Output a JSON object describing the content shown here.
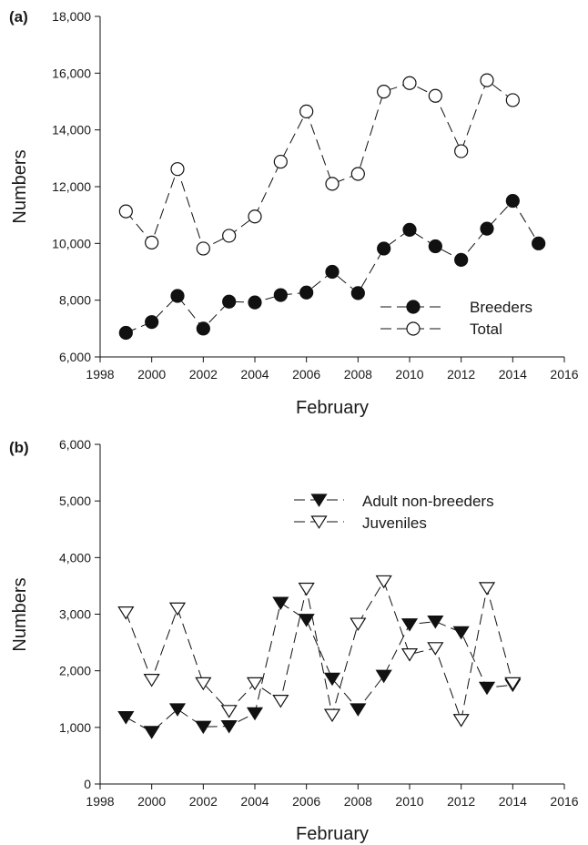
{
  "chart_data": [
    {
      "type": "line",
      "panel_label": "(a)",
      "xlabel": "February",
      "ylabel": "Numbers",
      "xlim": [
        1998,
        2016
      ],
      "ylim": [
        6000,
        18000
      ],
      "x_ticks": [
        1998,
        2000,
        2002,
        2004,
        2006,
        2008,
        2010,
        2012,
        2014,
        2016
      ],
      "x_tick_labels": [
        "1998",
        "2000",
        "2002",
        "2004",
        "2006",
        "2008",
        "2010",
        "2012",
        "2014",
        "2016"
      ],
      "y_ticks": [
        6000,
        8000,
        10000,
        12000,
        14000,
        16000,
        18000
      ],
      "y_tick_labels": [
        "6,000",
        "8,000",
        "10,000",
        "12,000",
        "14,000",
        "16,000",
        "18,000"
      ],
      "legend_position": "lower-right",
      "grid": false,
      "series": [
        {
          "name": "Breeders",
          "marker": "filled-circle",
          "x": [
            1999,
            2000,
            2001,
            2002,
            2003,
            2004,
            2005,
            2006,
            2007,
            2008,
            2009,
            2010,
            2011,
            2012,
            2013,
            2014,
            2015
          ],
          "values": [
            6850,
            7230,
            8150,
            7000,
            7950,
            7920,
            8180,
            8270,
            9000,
            8250,
            9820,
            10480,
            9900,
            9420,
            10520,
            11500,
            10000
          ]
        },
        {
          "name": "Total",
          "marker": "open-circle",
          "x": [
            1999,
            2000,
            2001,
            2002,
            2003,
            2004,
            2005,
            2006,
            2007,
            2008,
            2009,
            2010,
            2011,
            2012,
            2013,
            2014
          ],
          "values": [
            11130,
            10030,
            12620,
            9820,
            10270,
            10950,
            12880,
            14650,
            12100,
            12450,
            15350,
            15650,
            15200,
            13250,
            15750,
            15050
          ]
        }
      ]
    },
    {
      "type": "line",
      "panel_label": "(b)",
      "xlabel": "February",
      "ylabel": "Numbers",
      "xlim": [
        1998,
        2016
      ],
      "ylim": [
        0,
        6000
      ],
      "x_ticks": [
        1998,
        2000,
        2002,
        2004,
        2006,
        2008,
        2010,
        2012,
        2014,
        2016
      ],
      "x_tick_labels": [
        "1998",
        "2000",
        "2002",
        "2004",
        "2006",
        "2008",
        "2010",
        "2012",
        "2014",
        "2016"
      ],
      "y_ticks": [
        0,
        1000,
        2000,
        3000,
        4000,
        5000,
        6000
      ],
      "y_tick_labels": [
        "0",
        "1,000",
        "2,000",
        "3,000",
        "4,000",
        "5,000",
        "6,000"
      ],
      "legend_position": "top-right",
      "grid": false,
      "series": [
        {
          "name": "Adult non-breeders",
          "marker": "filled-down-triangle",
          "x": [
            1999,
            2000,
            2001,
            2002,
            2003,
            2004,
            2005,
            2006,
            2007,
            2008,
            2009,
            2010,
            2011,
            2012,
            2013,
            2014
          ],
          "values": [
            1180,
            920,
            1320,
            1010,
            1020,
            1250,
            3200,
            2900,
            1860,
            1320,
            1910,
            2820,
            2870,
            2680,
            1700,
            1750
          ]
        },
        {
          "name": "Juveniles",
          "marker": "open-down-triangle",
          "x": [
            1999,
            2000,
            2001,
            2002,
            2003,
            2004,
            2005,
            2006,
            2007,
            2008,
            2009,
            2010,
            2011,
            2012,
            2013,
            2014
          ],
          "values": [
            3030,
            1840,
            3100,
            1780,
            1290,
            1780,
            1470,
            3450,
            1220,
            2830,
            3580,
            2290,
            2400,
            1130,
            3460,
            1780
          ]
        }
      ]
    }
  ]
}
